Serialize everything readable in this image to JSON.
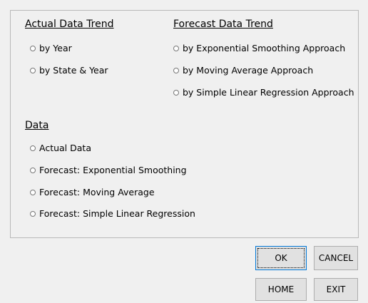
{
  "sections": [
    {
      "title": "Actual Data Trend",
      "options": [
        "by Year",
        "by State & Year"
      ]
    },
    {
      "title": "Forecast Data Trend",
      "options": [
        "by Exponential Smoothing Approach",
        "by Moving Average Approach",
        "by Simple Linear Regression Approach"
      ]
    },
    {
      "title": "Data",
      "options": [
        "Actual Data",
        "Forecast: Exponential Smoothing",
        "Forecast: Moving Average",
        "Forecast: Simple Linear Regression"
      ]
    }
  ],
  "buttons": [
    "OK",
    "CANCEL",
    "HOME",
    "EXIT"
  ]
}
